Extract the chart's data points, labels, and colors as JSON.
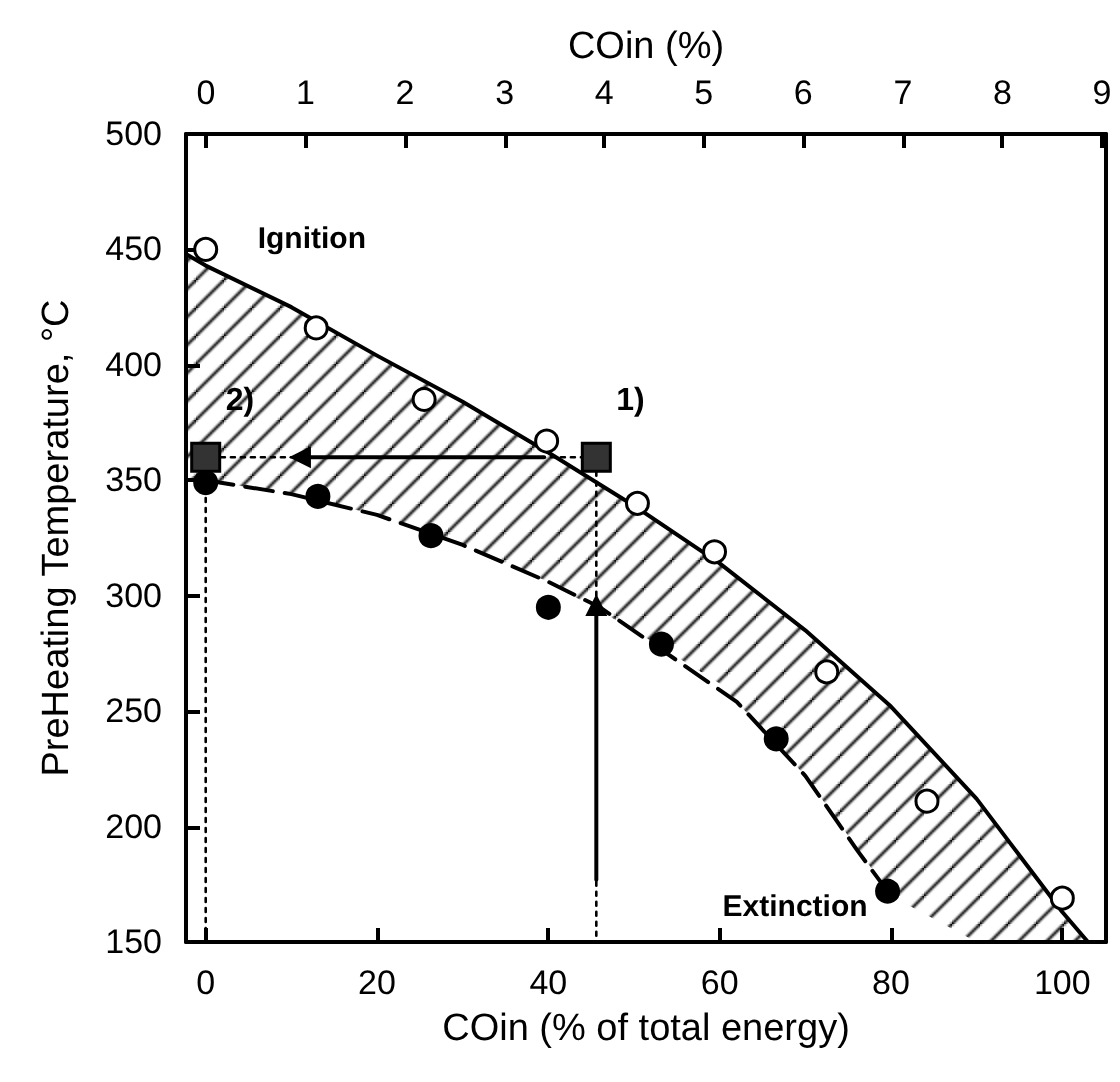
{
  "chart_data": {
    "type": "scatter",
    "xlabel": "COin (% of total energy)",
    "ylabel": "PreHeating Temperature, °C",
    "x2label": "COin (%)",
    "xlim": [
      -2.3,
      105.1
    ],
    "xticks": [
      0,
      20,
      40,
      60,
      80,
      100
    ],
    "ylim": [
      150,
      500
    ],
    "yticks": [
      150,
      200,
      250,
      300,
      350,
      400,
      450,
      500
    ],
    "x2lim": [
      -0.2,
      9.04
    ],
    "x2ticks": [
      0,
      1,
      2,
      3,
      4,
      5,
      6,
      7,
      8,
      9
    ],
    "grid": false,
    "legend": "top left",
    "annotations": [
      {
        "text": "1)",
        "x": 45.6,
        "y": 360
      },
      {
        "text": "2)",
        "x": 0,
        "y": 360
      }
    ],
    "series": [
      {
        "name": "Ignition",
        "marker": "circle",
        "color": "#ffffff",
        "x": [
          0,
          12.9,
          25.5,
          39.8,
          50.4,
          59.4,
          72.5,
          84.2,
          100
        ],
        "values": [
          450,
          416,
          385,
          367,
          340,
          319,
          267,
          211,
          169
        ]
      },
      {
        "name": "Extinction",
        "marker": "circle",
        "color": "#000000",
        "x": [
          0,
          13.1,
          26.3,
          40,
          53.2,
          66.6,
          79.6
        ],
        "values": [
          349,
          343,
          326,
          295,
          279,
          238,
          172
        ]
      },
      {
        "type": "line",
        "marker": "none",
        "line_style": "solid",
        "color": "#000000",
        "x": [
          -2.3,
          0,
          10,
          20,
          30,
          40,
          50,
          60,
          70,
          80,
          90,
          100,
          103
        ],
        "values": [
          448,
          443,
          425,
          404,
          384,
          362,
          339,
          314,
          285,
          252,
          212,
          163,
          150
        ],
        "upper": [
          448,
          443,
          425,
          404,
          384,
          362,
          339,
          314,
          285,
          252,
          212,
          163,
          150
        ],
        "lower": [
          351,
          350,
          344,
          335,
          322,
          306,
          285,
          262,
          222,
          170,
          150,
          150,
          150
        ]
      },
      {
        "type": "line",
        "marker": "none",
        "line_style": "dashed",
        "color": "#000000",
        "x": [
          0,
          10,
          20,
          30,
          40,
          46,
          55,
          62,
          70,
          76,
          80
        ],
        "values": [
          350,
          344,
          335,
          322,
          306,
          295,
          272,
          254,
          222,
          190,
          170
        ]
      },
      {
        "type": "line",
        "marker": "none",
        "line_style": "dotted",
        "color": "#000000",
        "x": [
          0,
          0,
          45.6,
          45.6
        ],
        "values": [
          150,
          360,
          360,
          150
        ]
      },
      {
        "type": "line",
        "marker": "triangle",
        "line_style": "solid",
        "color": "#000000",
        "x": [
          39.5,
          11
        ],
        "values": [
          360,
          360
        ]
      },
      {
        "type": "line",
        "marker": "triangle",
        "line_style": "solid",
        "color": "#000000",
        "x": [
          45.6,
          45.6
        ],
        "values": [
          177,
          296
        ]
      },
      {
        "marker": "square",
        "color": "#333333",
        "x": [
          45.6,
          0
        ],
        "values": [
          360,
          360
        ]
      }
    ]
  }
}
